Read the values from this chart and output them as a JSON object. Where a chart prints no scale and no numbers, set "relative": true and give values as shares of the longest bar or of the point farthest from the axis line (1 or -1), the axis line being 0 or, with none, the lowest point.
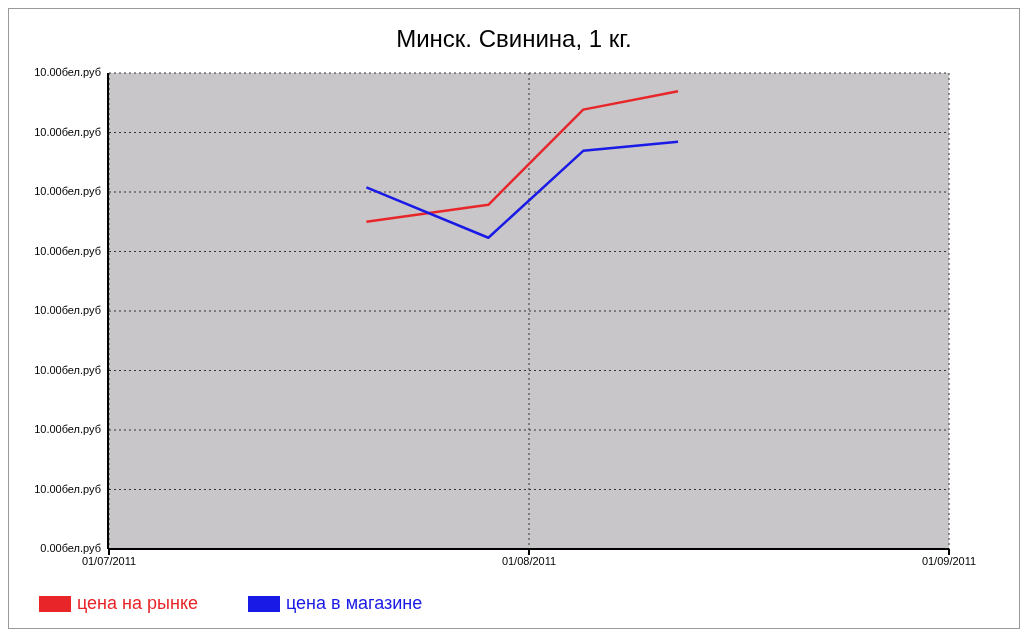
{
  "chart_data": {
    "type": "line",
    "title": "Минск. Свинина, 1 кг.",
    "relative": true,
    "x": [
      "2011-07-20",
      "2011-07-29",
      "2011-08-05",
      "2011-08-12"
    ],
    "series": [
      {
        "name": "цена на рынке",
        "color": "#e8262a",
        "values": [
          0.715,
          0.752,
          0.96,
          1
        ]
      },
      {
        "name": "цена в магазине",
        "color": "#1a1ae6",
        "values": [
          0.79,
          0.68,
          0.87,
          0.89
        ]
      }
    ],
    "xlim": [
      "2011-07-01",
      "2011-09-01"
    ],
    "xticks": [
      {
        "value": "2011-07-01",
        "label": "01/07/2011"
      },
      {
        "value": "2011-08-01",
        "label": "01/08/2011"
      },
      {
        "value": "2011-09-01",
        "label": "01/09/2011"
      }
    ],
    "annotations": [
      "10.00бел.руб",
      "10.00бел.руб",
      "10.00бел.руб",
      "10.00бел.руб",
      "10.00бел.руб",
      "10.00бел.руб",
      "10.00бел.руб",
      "10.00бел.руб",
      "0.00бел.руб"
    ],
    "grid": true,
    "legend": "bottom left",
    "marker": "none",
    "line_style": "solid"
  }
}
